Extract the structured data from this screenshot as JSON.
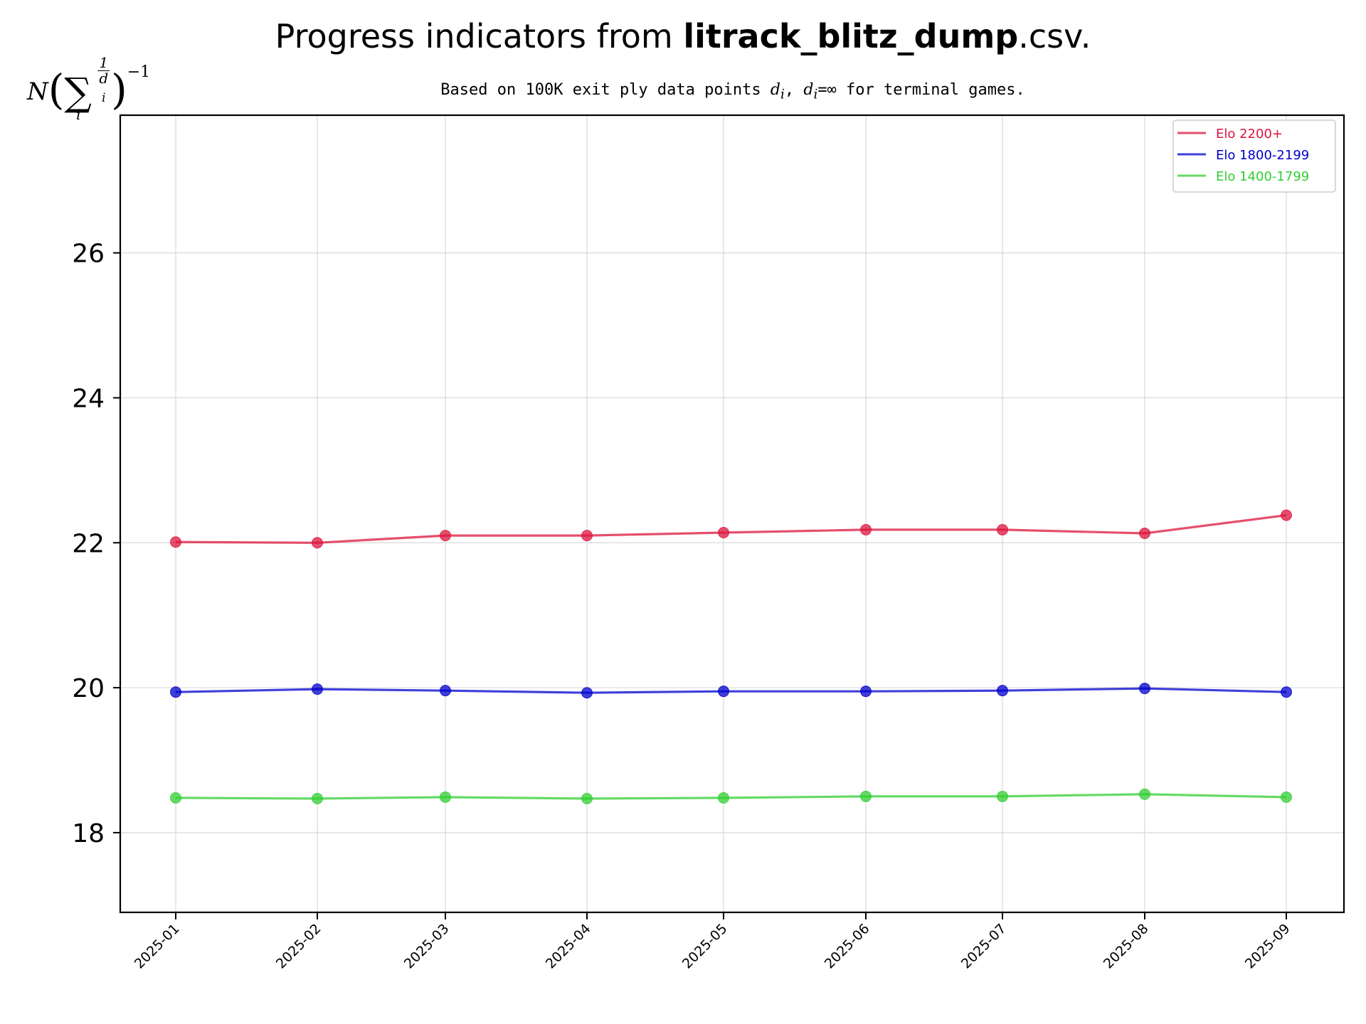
{
  "chart_data": {
    "type": "line",
    "title_prefix": "Progress indicators from ",
    "title_bold": "litrack_blitz_dump",
    "title_suffix": ".csv.",
    "subtitle_prefix": "Based on 100K exit ply data points ",
    "subtitle_var1": "d",
    "subtitle_sub1": "i",
    "subtitle_mid": ", ",
    "subtitle_var2": "d",
    "subtitle_sub2": "i",
    "subtitle_eq": "=∞",
    "subtitle_suffix": " for terminal games.",
    "ylabel_N": "N",
    "ylabel_sigma": "∑",
    "ylabel_index": "i",
    "ylabel_num": "1",
    "ylabel_den": "d",
    "ylabel_den_sub": "i",
    "ylabel_open": "(",
    "ylabel_close": ")",
    "ylabel_exp": "−1",
    "xlabel": "",
    "categories": [
      "2025-01",
      "2025-02",
      "2025-03",
      "2025-04",
      "2025-05",
      "2025-06",
      "2025-07",
      "2025-08",
      "2025-09"
    ],
    "ylim": [
      16.9,
      27.9
    ],
    "yticks": [
      18,
      20,
      22,
      24,
      26
    ],
    "grid": true,
    "legend_position": "top-right",
    "series": [
      {
        "name": "Elo 2200+",
        "color": "#dc143c",
        "values": [
          22.01,
          22.0,
          22.1,
          22.1,
          22.14,
          22.18,
          22.18,
          22.13,
          22.38
        ]
      },
      {
        "name": "Elo 1800-2199",
        "color": "#0000cd",
        "values": [
          19.94,
          19.98,
          19.96,
          19.93,
          19.95,
          19.95,
          19.96,
          19.99,
          19.94
        ]
      },
      {
        "name": "Elo 1400-1799",
        "color": "#32cd32",
        "values": [
          18.48,
          18.47,
          18.49,
          18.47,
          18.48,
          18.5,
          18.5,
          18.53,
          18.49
        ]
      }
    ]
  }
}
